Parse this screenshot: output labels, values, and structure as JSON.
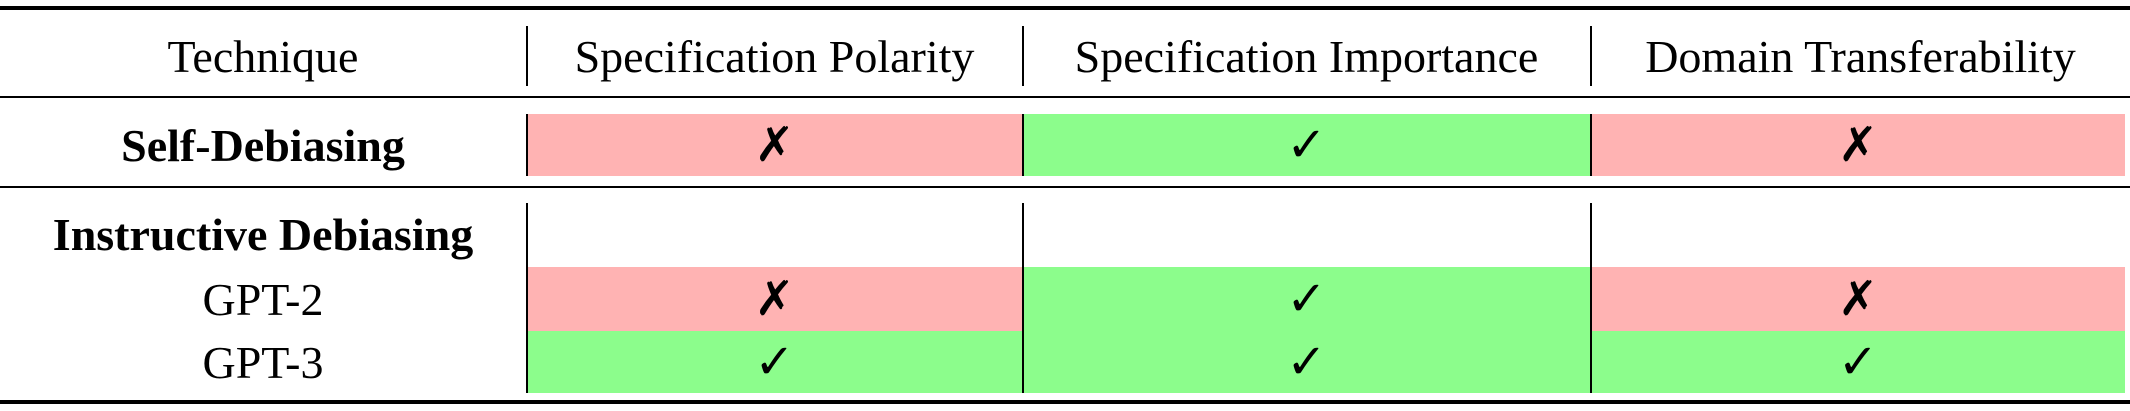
{
  "header": {
    "technique": "Technique",
    "polarity": "Specification Polarity",
    "importance": "Specification Importance",
    "transferability": "Domain Transferability"
  },
  "rows": [
    {
      "label": "Self-Debiasing",
      "bold": true,
      "polarity": "✗",
      "importance": "✓",
      "transferability": "✗"
    },
    {
      "label": "Instructive Debiasing",
      "bold": true,
      "polarity": "",
      "importance": "",
      "transferability": ""
    },
    {
      "label": "GPT-2",
      "bold": false,
      "polarity": "✗",
      "importance": "✓",
      "transferability": "✗"
    },
    {
      "label": "GPT-3",
      "bold": false,
      "polarity": "✓",
      "importance": "✓",
      "transferability": "✓"
    }
  ],
  "colors": {
    "negative": "#ffb3b3",
    "positive": "#8cfd8c"
  }
}
